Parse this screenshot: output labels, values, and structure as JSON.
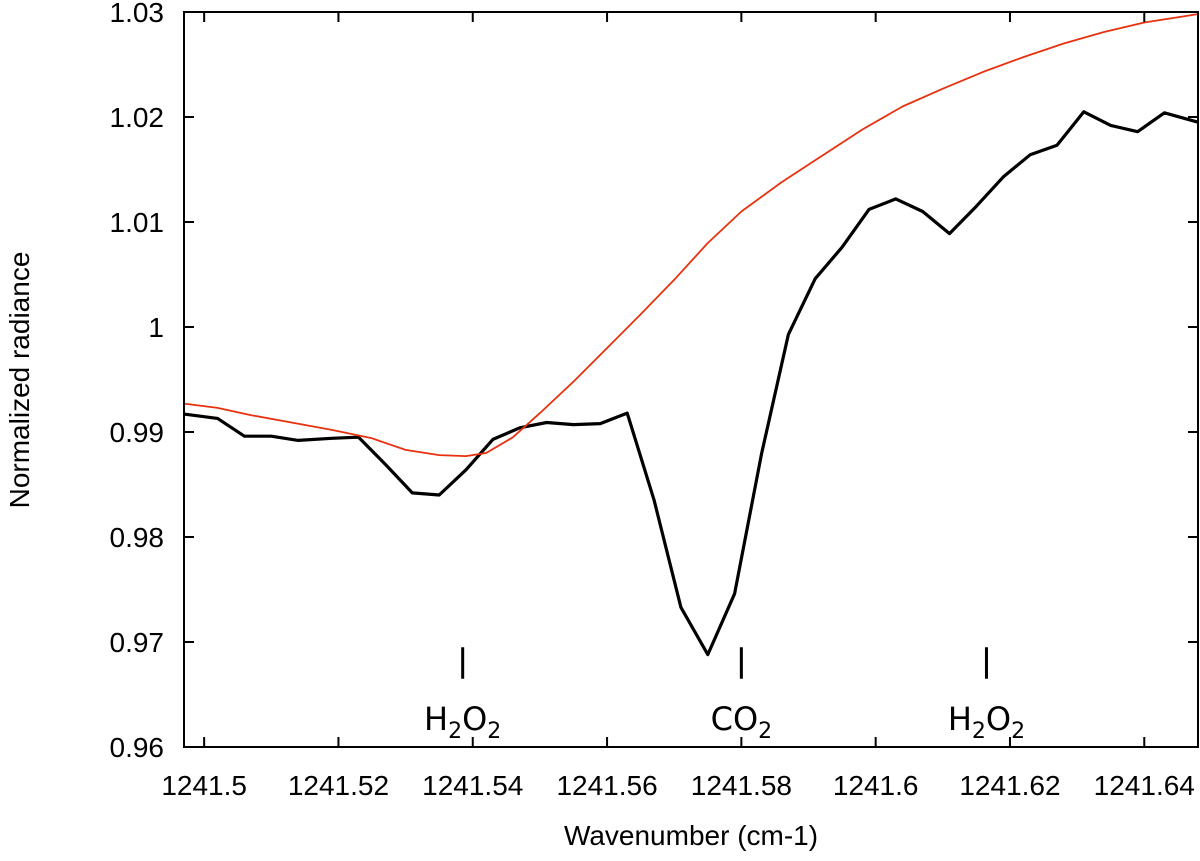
{
  "chart_data": {
    "type": "line",
    "title": "",
    "xlabel": "Wavenumber (cm-1)",
    "ylabel": "Normalized radiance",
    "xlim": [
      1241.497,
      1241.648
    ],
    "ylim": [
      0.96,
      1.03
    ],
    "grid": false,
    "xticks": [
      1241.5,
      1241.52,
      1241.54,
      1241.56,
      1241.58,
      1241.6,
      1241.62,
      1241.64
    ],
    "xtick_labels": [
      "1241.5",
      "1241.52",
      "1241.54",
      "1241.56",
      "1241.58",
      "1241.6",
      "1241.62",
      "1241.64"
    ],
    "yticks": [
      0.96,
      0.97,
      0.98,
      0.99,
      1.0,
      1.01,
      1.02,
      1.03
    ],
    "ytick_labels": [
      "0.96",
      "0.97",
      "0.98",
      "0.99",
      "1",
      "1.01",
      "1.02",
      "1.03"
    ],
    "series": [
      {
        "color": "#000000",
        "x": [
          1241.497,
          1241.502,
          1241.506,
          1241.51,
          1241.514,
          1241.519,
          1241.523,
          1241.527,
          1241.531,
          1241.535,
          1241.539,
          1241.543,
          1241.547,
          1241.551,
          1241.555,
          1241.559,
          1241.563,
          1241.567,
          1241.571,
          1241.575,
          1241.579,
          1241.583,
          1241.587,
          1241.591,
          1241.595,
          1241.599,
          1241.603,
          1241.607,
          1241.611,
          1241.615,
          1241.619,
          1241.623,
          1241.627,
          1241.631,
          1241.635,
          1241.639,
          1241.643,
          1241.648
        ],
        "y": [
          0.9917,
          0.9913,
          0.9896,
          0.9896,
          0.9892,
          0.9894,
          0.9895,
          0.9869,
          0.9842,
          0.984,
          0.9864,
          0.9893,
          0.9904,
          0.9909,
          0.9907,
          0.9908,
          0.9918,
          0.9835,
          0.9733,
          0.9688,
          0.9746,
          0.9879,
          0.9993,
          1.0046,
          1.0076,
          1.0112,
          1.0122,
          1.011,
          1.0089,
          1.0115,
          1.0143,
          1.0164,
          1.0173,
          1.0205,
          1.0192,
          1.0186,
          1.0204,
          1.0195
        ]
      },
      {
        "color": "#e8320f",
        "x": [
          1241.497,
          1241.502,
          1241.507,
          1241.513,
          1241.519,
          1241.525,
          1241.53,
          1241.535,
          1241.539,
          1241.542,
          1241.546,
          1241.55,
          1241.555,
          1241.56,
          1241.565,
          1241.57,
          1241.575,
          1241.58,
          1241.586,
          1241.592,
          1241.598,
          1241.604,
          1241.61,
          1241.616,
          1241.622,
          1241.628,
          1241.634,
          1241.64,
          1241.648
        ],
        "y": [
          0.9927,
          0.9923,
          0.9916,
          0.9909,
          0.9902,
          0.9894,
          0.9883,
          0.9878,
          0.9877,
          0.988,
          0.9895,
          0.9918,
          0.9948,
          0.998,
          1.0012,
          1.0045,
          1.008,
          1.011,
          1.0138,
          1.0163,
          1.0188,
          1.021,
          1.0227,
          1.0243,
          1.0257,
          1.027,
          1.0281,
          1.029,
          1.0298
        ]
      }
    ],
    "annotations": [
      {
        "x": 1241.5385,
        "parts": [
          {
            "t": "H"
          },
          {
            "t": "2",
            "sub": true
          },
          {
            "t": "O"
          },
          {
            "t": "2",
            "sub": true
          }
        ]
      },
      {
        "x": 1241.58,
        "parts": [
          {
            "t": "CO"
          },
          {
            "t": "2",
            "sub": true
          }
        ]
      },
      {
        "x": 1241.6165,
        "parts": [
          {
            "t": "H"
          },
          {
            "t": "2",
            "sub": true
          },
          {
            "t": "O"
          },
          {
            "t": "2",
            "sub": true
          }
        ]
      }
    ],
    "annotation_marker_y": [
      0.9665,
      0.9695
    ]
  }
}
